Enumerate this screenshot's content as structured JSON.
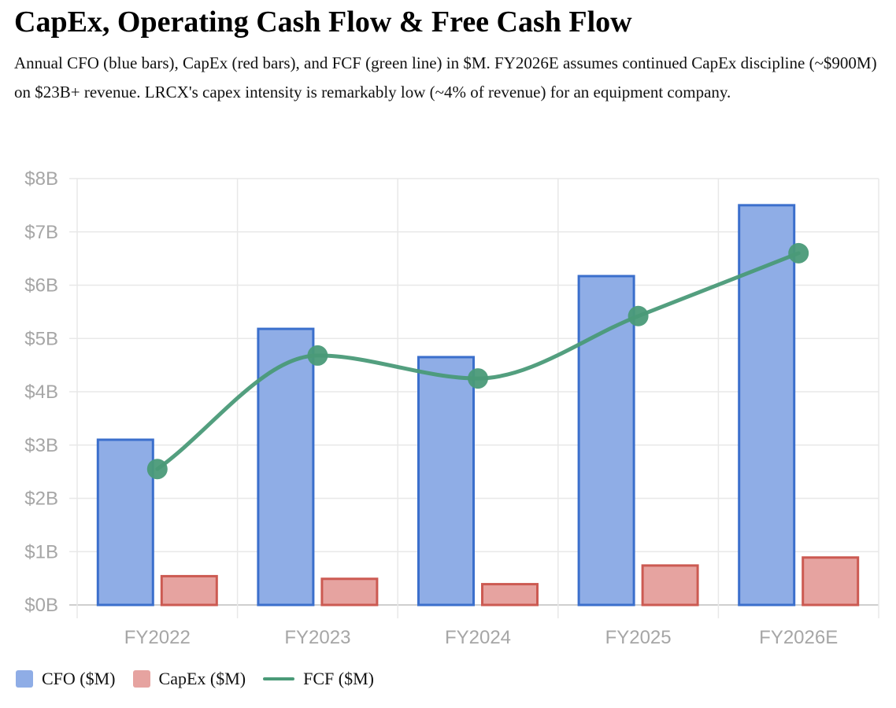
{
  "page": {
    "title": "CapEx, Operating Cash Flow & Free Cash Flow",
    "subtitle": "Annual CFO (blue bars), CapEx (red bars), and FCF (green line) in $M. FY2026E assumes continued CapEx discipline (~$900M) on $23B+ revenue. LRCX's capex intensity is remarkably low (~4% of revenue) for an equipment company."
  },
  "chart_data": {
    "type": "bar",
    "categories": [
      "FY2022",
      "FY2023",
      "FY2024",
      "FY2025",
      "FY2026E"
    ],
    "series": [
      {
        "name": "CFO ($M)",
        "type": "bar",
        "values": [
          3100,
          5180,
          4650,
          6170,
          7500
        ],
        "color": "#8fade6",
        "border": "#3b6fcc"
      },
      {
        "name": "CapEx ($M)",
        "type": "bar",
        "values": [
          540,
          490,
          390,
          740,
          890
        ],
        "color": "#e6a3a0",
        "border": "#cc5a52"
      },
      {
        "name": "FCF ($M)",
        "type": "line",
        "values": [
          2550,
          4680,
          4250,
          5420,
          6600
        ],
        "color": "#4a9a78"
      }
    ],
    "ylim": [
      0,
      8000
    ],
    "yticks": [
      0,
      1000,
      2000,
      3000,
      4000,
      5000,
      6000,
      7000,
      8000
    ],
    "ytick_labels": [
      "$0B",
      "$1B",
      "$2B",
      "$3B",
      "$4B",
      "$5B",
      "$6B",
      "$7B",
      "$8B"
    ],
    "grid": true,
    "legend_position": "bottom-left"
  }
}
